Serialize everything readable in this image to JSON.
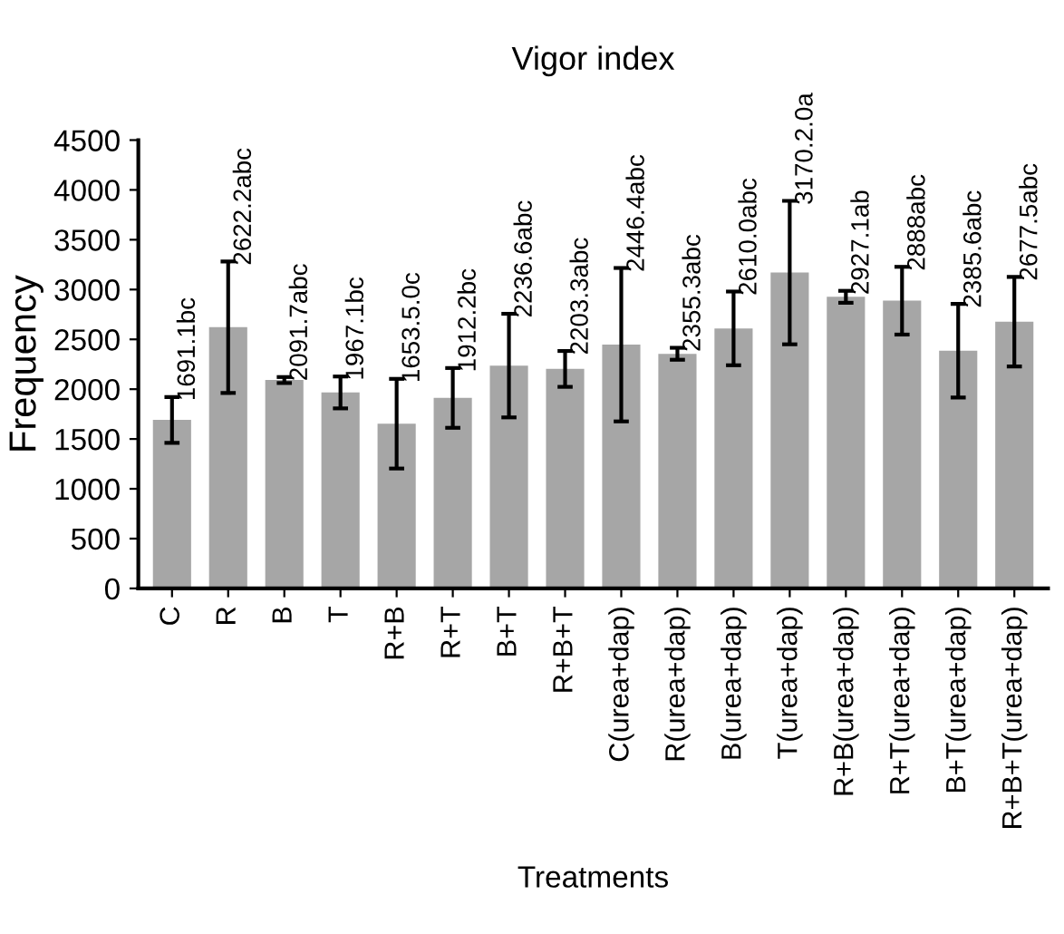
{
  "chart_data": {
    "type": "bar",
    "title": "Vigor index",
    "xlabel": "Treatments",
    "ylabel": "Frequency",
    "categories": [
      "C",
      "R",
      "B",
      "T",
      "R+B",
      "R+T",
      "B+T",
      "R+B+T",
      "C(urea+dap)",
      "R(urea+dap)",
      "B(urea+dap)",
      "T(urea+dap)",
      "R+B(urea+dap)",
      "R+T(urea+dap)",
      "B+T(urea+dap)",
      "R+B+T(urea+dap)"
    ],
    "values": [
      1691.1,
      2622.2,
      2091.7,
      1967.1,
      1653.5,
      1912.2,
      2236.6,
      2203.3,
      2446.4,
      2355.3,
      2610.0,
      3170.2,
      2927.1,
      2888,
      2385.6,
      2677.5
    ],
    "errors": [
      230,
      660,
      30,
      160,
      450,
      300,
      520,
      180,
      770,
      60,
      370,
      720,
      60,
      340,
      470,
      450
    ],
    "value_labels": [
      "1691.1bc",
      "2622.2abc",
      "2091.7abc",
      "1967.1bc",
      "1653.5.0c",
      "1912.2bc",
      "2236.6abc",
      "2203.3abc",
      "2446.4abc",
      "2355.3abc",
      "2610.0abc",
      "3170.2.0a",
      "2927.1ab",
      "2888abc",
      "2385.6abc",
      "2677.5abc"
    ],
    "color": "#a6a6a6",
    "ylim": [
      0,
      4500
    ],
    "yticks": [
      0,
      500,
      1000,
      1500,
      2000,
      2500,
      3000,
      3500,
      4000,
      4500
    ],
    "grid": false,
    "legend": false
  }
}
